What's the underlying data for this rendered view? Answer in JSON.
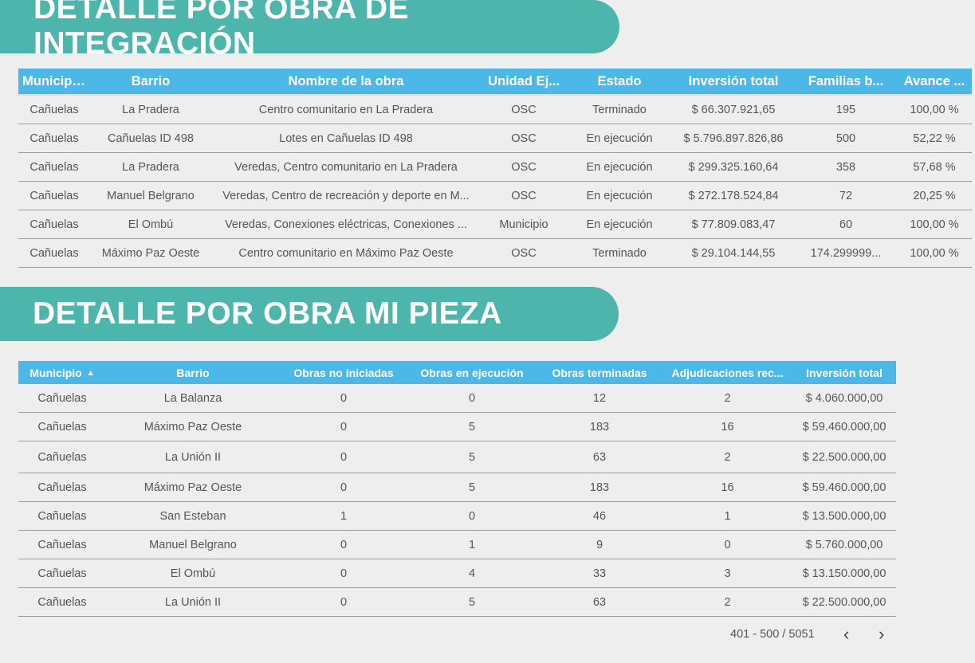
{
  "section1": {
    "title": "DETALLE POR OBRA DE INTEGRACIÓN",
    "columns": [
      "Municipio",
      "Barrio",
      "Nombre de la obra",
      "Unidad Ej...",
      "Estado",
      "Inversión total",
      "Familias b...",
      "Avance ..."
    ],
    "sort_icon": "sort-desc-icon",
    "rows": [
      [
        "Cañuelas",
        "La Pradera",
        "Centro comunitario en La Pradera",
        "OSC",
        "Terminado",
        "$ 66.307.921,65",
        "195",
        "100,00 %"
      ],
      [
        "Cañuelas",
        "Cañuelas ID 498",
        "Lotes en Cañuelas ID 498",
        "OSC",
        "En ejecución",
        "$ 5.796.897.826,86",
        "500",
        "52,22 %"
      ],
      [
        "Cañuelas",
        "La Pradera",
        "Veredas, Centro comunitario en La Pradera",
        "OSC",
        "En ejecución",
        "$ 299.325.160,64",
        "358",
        "57,68 %"
      ],
      [
        "Cañuelas",
        "Manuel Belgrano",
        "Veredas, Centro de recreación y deporte en M...",
        "OSC",
        "En ejecución",
        "$ 272.178.524,84",
        "72",
        "20,25 %"
      ],
      [
        "Cañuelas",
        "El Ombú",
        "Veredas, Conexiones eléctricas, Conexiones ...",
        "Municipio",
        "En ejecución",
        "$ 77.809.083,47",
        "60",
        "100,00 %"
      ],
      [
        "Cañuelas",
        "Máximo Paz Oeste",
        "Centro comunitario en Máximo Paz Oeste",
        "OSC",
        "Terminado",
        "$ 29.104.144,55",
        "174.299999...",
        "100,00 %"
      ]
    ]
  },
  "section2": {
    "title": "DETALLE POR OBRA MI PIEZA",
    "columns": [
      "Municipio",
      "Barrio",
      "Obras no iniciadas",
      "Obras en ejecución",
      "Obras terminadas",
      "Adjudicaciones rec...",
      "Inversión total"
    ],
    "sort_icon": "sort-asc-icon",
    "rows": [
      [
        "Cañuelas",
        "La Balanza",
        "0",
        "0",
        "12",
        "2",
        "$ 4.060.000,00"
      ],
      [
        "Cañuelas",
        "Máximo Paz Oeste",
        "0",
        "5",
        "183",
        "16",
        "$ 59.460.000,00"
      ],
      [
        "Cañuelas",
        "La Unión II",
        "0",
        "5",
        "63",
        "2",
        "$ 22.500.000,00"
      ],
      [
        "Cañuelas",
        "Máximo Paz Oeste",
        "0",
        "5",
        "183",
        "16",
        "$ 59.460.000,00"
      ],
      [
        "Cañuelas",
        "San Esteban",
        "1",
        "0",
        "46",
        "1",
        "$ 13.500.000,00"
      ],
      [
        "Cañuelas",
        "Manuel Belgrano",
        "0",
        "1",
        "9",
        "0",
        "$ 5.760.000,00"
      ],
      [
        "Cañuelas",
        "El Ombú",
        "0",
        "4",
        "33",
        "3",
        "$ 13.150.000,00"
      ],
      [
        "Cañuelas",
        "La Unión II",
        "0",
        "5",
        "63",
        "2",
        "$ 22.500.000,00"
      ]
    ],
    "pagination": {
      "range": "401 - 500 / 5051",
      "prev_icon": "chevron-left-icon",
      "next_icon": "chevron-right-icon"
    }
  }
}
